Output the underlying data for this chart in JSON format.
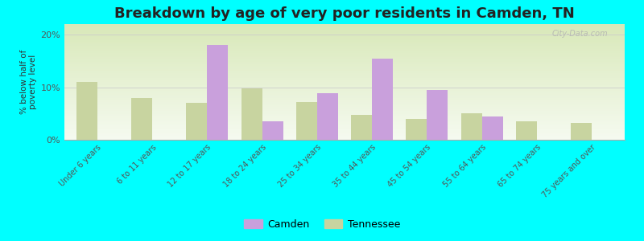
{
  "title": "Breakdown by age of very poor residents in Camden, TN",
  "categories": [
    "Under 6 years",
    "6 to 11 years",
    "12 to 17 years",
    "18 to 24 years",
    "25 to 34 years",
    "35 to 44 years",
    "45 to 54 years",
    "55 to 64 years",
    "65 to 74 years",
    "75 years and over"
  ],
  "camden_values": [
    0,
    0,
    18.0,
    3.5,
    8.8,
    15.5,
    9.5,
    4.5,
    0,
    0
  ],
  "tennessee_values": [
    11.0,
    8.0,
    7.0,
    9.8,
    7.2,
    4.8,
    4.0,
    5.0,
    3.5,
    3.2
  ],
  "camden_color": "#c9a0dc",
  "tennessee_color": "#c8d4a0",
  "background_color": "#00ffff",
  "grad_top": "#d8e8b8",
  "grad_bottom": "#f5faf0",
  "ylabel": "% below half of\npoverty level",
  "ylim": [
    0,
    22
  ],
  "yticks": [
    0,
    10,
    20
  ],
  "ytick_labels": [
    "0%",
    "10%",
    "20%"
  ],
  "title_fontsize": 13,
  "bar_width": 0.38,
  "legend_camden": "Camden",
  "legend_tennessee": "Tennessee"
}
